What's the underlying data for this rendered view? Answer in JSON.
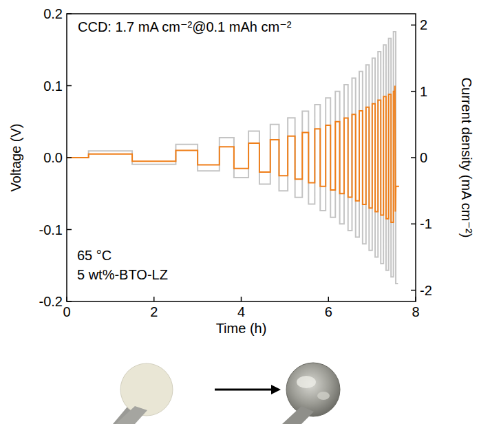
{
  "chart_data": {
    "type": "line",
    "x_label": "Time (h)",
    "y_label": "Voltage (V)",
    "y2_label": "Current density (mA cm⁻²)",
    "annotations": [
      "CCD: 1.7 mA cm⁻²@0.1 mAh cm⁻²",
      "65 °C",
      "5 wt%-BTO-LZ"
    ],
    "xlim": [
      0,
      8
    ],
    "xticks": [
      0,
      2,
      4,
      6,
      8
    ],
    "ylim": [
      -0.2,
      0.2
    ],
    "yticks": [
      -0.2,
      -0.1,
      {
        "value": 0,
        "label": "0.0"
      },
      0.1,
      0.2
    ],
    "y2lim": [
      -2.17,
      2.17
    ],
    "y2ticks": [
      -2,
      -1,
      0,
      1,
      2
    ],
    "grid": false,
    "series": [
      {
        "color": "#c4c4c4",
        "axis": "y2",
        "line_style": "solid",
        "x": [
          0,
          0.5,
          0.5,
          1.5,
          1.5,
          2.5,
          2.5,
          3.0,
          3.0,
          3.5,
          3.5,
          3.833,
          3.833,
          4.167,
          4.167,
          4.417,
          4.417,
          4.667,
          4.667,
          4.867,
          4.867,
          5.067,
          5.067,
          5.233,
          5.233,
          5.4,
          5.4,
          5.543,
          5.543,
          5.686,
          5.686,
          5.811,
          5.811,
          5.936,
          5.936,
          6.047,
          6.047,
          6.158,
          6.158,
          6.258,
          6.258,
          6.358,
          6.358,
          6.449,
          6.449,
          6.54,
          6.54,
          6.623,
          6.623,
          6.706,
          6.706,
          6.783,
          6.783,
          6.86,
          6.86,
          6.932,
          6.932,
          7.003,
          7.003,
          7.07,
          7.07,
          7.136,
          7.136,
          7.199,
          7.199,
          7.261,
          7.261,
          7.32,
          7.32,
          7.379,
          7.379,
          7.435,
          7.435,
          7.49,
          7.49,
          7.543,
          7.543,
          7.595
        ],
        "values": [
          0,
          0,
          0.1,
          0.1,
          -0.1,
          -0.1,
          0.2,
          0.2,
          -0.2,
          -0.2,
          0.3,
          0.3,
          -0.3,
          -0.3,
          0.4,
          0.4,
          -0.4,
          -0.4,
          0.5,
          0.5,
          -0.5,
          -0.5,
          0.6,
          0.6,
          -0.6,
          -0.6,
          0.7,
          0.7,
          -0.7,
          -0.7,
          0.8,
          0.8,
          -0.8,
          -0.8,
          0.9,
          0.9,
          -0.9,
          -0.9,
          1.0,
          1.0,
          -1.0,
          -1.0,
          1.1,
          1.1,
          -1.1,
          -1.1,
          1.2,
          1.2,
          -1.2,
          -1.2,
          1.3,
          1.3,
          -1.3,
          -1.3,
          1.4,
          1.4,
          -1.4,
          -1.4,
          1.5,
          1.5,
          -1.5,
          -1.5,
          1.6,
          1.6,
          -1.6,
          -1.6,
          1.7,
          1.7,
          -1.7,
          -1.7,
          1.8,
          1.8,
          -1.8,
          -1.8,
          1.9,
          1.9,
          -1.9,
          -1.9
        ]
      },
      {
        "color": "#ef7f1a",
        "line_style": "solid",
        "x": [
          0,
          0.5,
          0.5,
          1.5,
          1.5,
          2.5,
          2.5,
          3.0,
          3.0,
          3.5,
          3.5,
          3.833,
          3.833,
          4.167,
          4.167,
          4.417,
          4.417,
          4.667,
          4.667,
          4.867,
          4.867,
          5.067,
          5.067,
          5.233,
          5.233,
          5.4,
          5.4,
          5.543,
          5.543,
          5.686,
          5.686,
          5.811,
          5.811,
          5.936,
          5.936,
          6.047,
          6.047,
          6.158,
          6.158,
          6.258,
          6.258,
          6.358,
          6.358,
          6.449,
          6.449,
          6.54,
          6.54,
          6.623,
          6.623,
          6.706,
          6.706,
          6.783,
          6.783,
          6.86,
          6.86,
          6.932,
          6.932,
          7.003,
          7.003,
          7.07,
          7.07,
          7.136,
          7.136,
          7.199,
          7.199,
          7.261,
          7.261,
          7.32,
          7.32,
          7.379,
          7.379,
          7.435,
          7.435,
          7.49,
          7.49,
          7.52,
          7.525,
          7.535,
          7.545,
          7.62
        ],
        "values": [
          0,
          0,
          0.005,
          0.005,
          -0.005,
          -0.005,
          0.01,
          0.01,
          -0.01,
          -0.01,
          0.015,
          0.015,
          -0.015,
          -0.015,
          0.02,
          0.02,
          -0.02,
          -0.02,
          0.025,
          0.025,
          -0.025,
          -0.025,
          0.03,
          0.03,
          -0.03,
          -0.03,
          0.035,
          0.035,
          -0.035,
          -0.035,
          0.04,
          0.04,
          -0.04,
          -0.04,
          0.045,
          0.045,
          -0.045,
          -0.045,
          0.05,
          0.05,
          -0.05,
          -0.05,
          0.055,
          0.055,
          -0.055,
          -0.055,
          0.06,
          0.06,
          -0.06,
          -0.06,
          0.065,
          0.065,
          -0.065,
          -0.065,
          0.07,
          0.07,
          -0.07,
          -0.07,
          0.075,
          0.075,
          -0.075,
          -0.075,
          0.08,
          0.08,
          -0.08,
          -0.08,
          0.085,
          0.085,
          -0.085,
          -0.085,
          0.088,
          0.088,
          -0.09,
          -0.09,
          0.092,
          0.092,
          0.1,
          -0.075,
          -0.04,
          -0.04
        ]
      }
    ]
  }
}
